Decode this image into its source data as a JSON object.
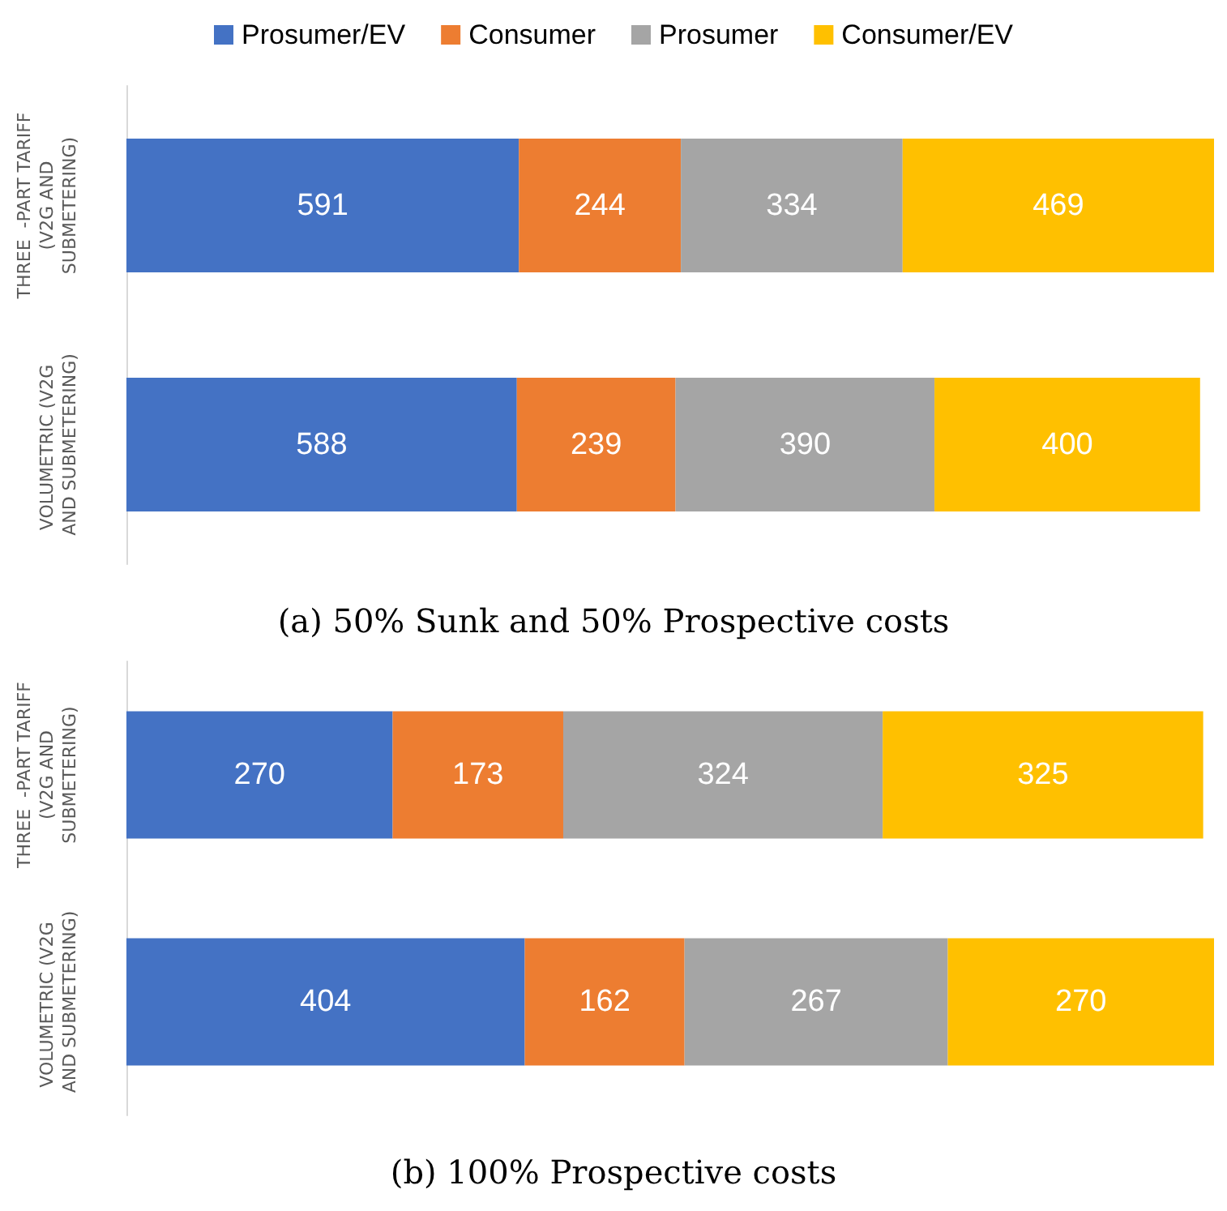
{
  "chart_data": [
    {
      "type": "bar",
      "orientation": "horizontal",
      "stacked": true,
      "data_labels": true,
      "legend": "top",
      "title": "(a) 50% Sunk and 50% Prospective costs",
      "categories": [
        "THREE  -PART TARIFF (V2G AND SUBMETERING)",
        "VOLUMETRIC (V2G AND SUBMETERING)"
      ],
      "series": [
        {
          "name": "Prosumer/EV",
          "color": "#4472c4",
          "values": [
            591,
            588
          ]
        },
        {
          "name": "Consumer",
          "color": "#ed7d31",
          "values": [
            244,
            239
          ]
        },
        {
          "name": "Prosumer",
          "color": "#a5a5a5",
          "values": [
            334,
            390
          ]
        },
        {
          "name": "Consumer/EV",
          "color": "#ffc000",
          "values": [
            469,
            400
          ]
        }
      ]
    },
    {
      "type": "bar",
      "orientation": "horizontal",
      "stacked": true,
      "data_labels": true,
      "legend": false,
      "title": "(b) 100% Prospective costs",
      "categories": [
        "THREE  -PART TARIFF (V2G AND SUBMETERING)",
        "VOLUMETRIC (V2G AND SUBMETERING)"
      ],
      "series": [
        {
          "color": "#4472c4",
          "values": [
            270,
            404
          ]
        },
        {
          "color": "#ed7d31",
          "values": [
            173,
            162
          ]
        },
        {
          "color": "#a5a5a5",
          "values": [
            324,
            267
          ]
        },
        {
          "color": "#ffc000",
          "values": [
            325,
            270
          ]
        }
      ]
    }
  ]
}
